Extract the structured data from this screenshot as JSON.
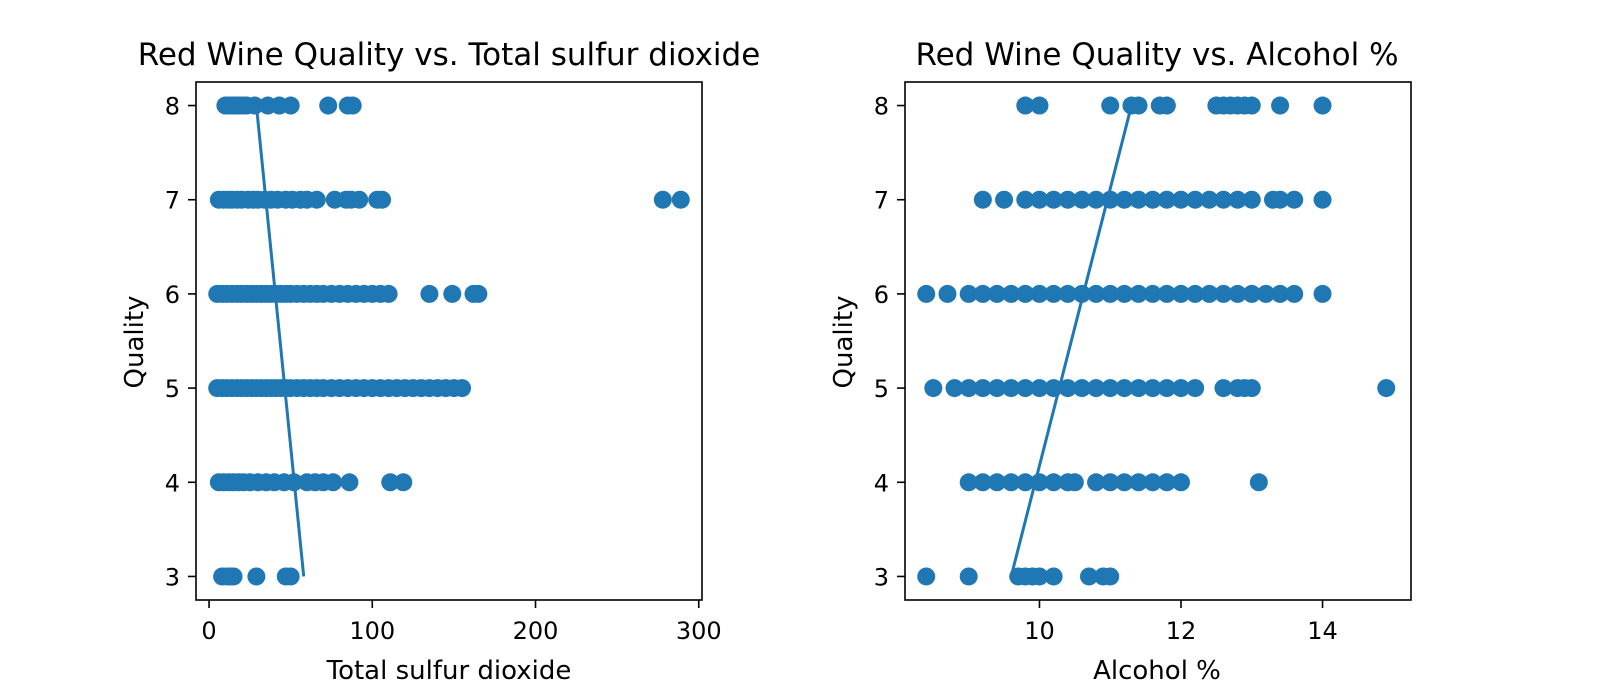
{
  "chart_data": [
    {
      "type": "scatter",
      "title": "Red Wine Quality vs. Total sulfur dioxide",
      "xlabel": "Total sulfur dioxide",
      "ylabel": "Quality",
      "xlim": [
        -8,
        302
      ],
      "ylim": [
        2.75,
        8.25
      ],
      "xticks": [
        0,
        100,
        200,
        300
      ],
      "xtick_labels": [
        "0",
        "100",
        "200",
        "300"
      ],
      "yticks": [
        3,
        4,
        5,
        6,
        7,
        8
      ],
      "ytick_labels": [
        "3",
        "4",
        "5",
        "6",
        "7",
        "8"
      ],
      "grid": false,
      "color": "#1f77b4",
      "fit_line": {
        "x": [
          58,
          29
        ],
        "y": [
          3,
          8
        ]
      },
      "points": {
        "x": [
          10,
          12,
          14,
          15,
          17,
          19,
          21,
          23,
          28,
          36,
          43,
          50,
          73,
          85,
          88,
          6,
          9,
          12,
          14,
          17,
          20,
          24,
          27,
          30,
          34,
          38,
          42,
          47,
          51,
          56,
          60,
          66,
          77,
          84,
          87,
          92,
          103,
          106,
          278,
          289,
          5,
          8,
          11,
          14,
          17,
          20,
          23,
          26,
          29,
          32,
          35,
          38,
          41,
          44,
          47,
          50,
          54,
          58,
          62,
          66,
          70,
          75,
          80,
          85,
          90,
          95,
          100,
          105,
          110,
          135,
          149,
          162,
          165,
          5,
          8,
          11,
          14,
          17,
          20,
          23,
          26,
          29,
          32,
          35,
          38,
          41,
          44,
          47,
          50,
          54,
          58,
          62,
          66,
          70,
          75,
          80,
          85,
          90,
          95,
          100,
          105,
          110,
          115,
          120,
          125,
          130,
          135,
          140,
          145,
          150,
          155,
          6,
          9,
          12,
          15,
          18,
          21,
          25,
          30,
          35,
          40,
          46,
          52,
          60,
          65,
          70,
          76,
          86,
          111,
          119,
          8,
          11,
          13,
          15,
          29,
          47,
          50
        ],
        "y": [
          8,
          8,
          8,
          8,
          8,
          8,
          8,
          8,
          8,
          8,
          8,
          8,
          8,
          8,
          8,
          7,
          7,
          7,
          7,
          7,
          7,
          7,
          7,
          7,
          7,
          7,
          7,
          7,
          7,
          7,
          7,
          7,
          7,
          7,
          7,
          7,
          7,
          7,
          7,
          7,
          6,
          6,
          6,
          6,
          6,
          6,
          6,
          6,
          6,
          6,
          6,
          6,
          6,
          6,
          6,
          6,
          6,
          6,
          6,
          6,
          6,
          6,
          6,
          6,
          6,
          6,
          6,
          6,
          6,
          6,
          6,
          6,
          6,
          5,
          5,
          5,
          5,
          5,
          5,
          5,
          5,
          5,
          5,
          5,
          5,
          5,
          5,
          5,
          5,
          5,
          5,
          5,
          5,
          5,
          5,
          5,
          5,
          5,
          5,
          5,
          5,
          5,
          5,
          5,
          5,
          5,
          5,
          5,
          5,
          5,
          5,
          4,
          4,
          4,
          4,
          4,
          4,
          4,
          4,
          4,
          4,
          4,
          4,
          4,
          4,
          4,
          4,
          4,
          4,
          4,
          3,
          3,
          3,
          3,
          3,
          3,
          3
        ]
      }
    },
    {
      "type": "scatter",
      "title": "Red Wine Quality vs. Alcohol %",
      "xlabel": "Alcohol %",
      "ylabel": "Quality",
      "xlim": [
        8.1,
        15.25
      ],
      "ylim": [
        2.75,
        8.25
      ],
      "xticks": [
        10,
        12,
        14
      ],
      "xtick_labels": [
        "10",
        "12",
        "14"
      ],
      "yticks": [
        3,
        4,
        5,
        6,
        7,
        8
      ],
      "ytick_labels": [
        "3",
        "4",
        "5",
        "6",
        "7",
        "8"
      ],
      "grid": false,
      "color": "#1f77b4",
      "fit_line": {
        "x": [
          9.6,
          11.3
        ],
        "y": [
          3,
          8
        ]
      },
      "points": {
        "x": [
          9.8,
          10.0,
          11.0,
          11.3,
          11.4,
          11.7,
          11.8,
          12.5,
          12.6,
          12.7,
          12.8,
          12.9,
          13.0,
          13.4,
          14.0,
          9.2,
          9.5,
          9.8,
          10.0,
          10.2,
          10.4,
          10.6,
          10.8,
          11.0,
          11.2,
          11.4,
          11.6,
          11.8,
          12.0,
          12.2,
          12.4,
          12.6,
          12.8,
          13.0,
          13.3,
          13.4,
          13.6,
          14.0,
          8.4,
          8.7,
          9.0,
          9.2,
          9.4,
          9.6,
          9.8,
          10.0,
          10.2,
          10.4,
          10.6,
          10.8,
          11.0,
          11.2,
          11.4,
          11.6,
          11.8,
          12.0,
          12.2,
          12.4,
          12.6,
          12.8,
          13.0,
          13.2,
          13.4,
          13.6,
          14.0,
          8.5,
          8.8,
          9.0,
          9.2,
          9.4,
          9.6,
          9.8,
          10.0,
          10.2,
          10.4,
          10.6,
          10.8,
          11.0,
          11.2,
          11.4,
          11.6,
          11.8,
          12.0,
          12.2,
          12.6,
          12.8,
          12.9,
          13.0,
          14.9,
          9.0,
          9.2,
          9.4,
          9.6,
          9.8,
          10.0,
          10.2,
          10.4,
          10.5,
          10.8,
          11.0,
          11.2,
          11.4,
          11.6,
          11.8,
          12.0,
          13.1,
          8.4,
          9.0,
          9.7,
          9.8,
          9.9,
          10.0,
          10.2,
          10.7,
          10.9,
          11.0
        ],
        "y": [
          8,
          8,
          8,
          8,
          8,
          8,
          8,
          8,
          8,
          8,
          8,
          8,
          8,
          8,
          8,
          7,
          7,
          7,
          7,
          7,
          7,
          7,
          7,
          7,
          7,
          7,
          7,
          7,
          7,
          7,
          7,
          7,
          7,
          7,
          7,
          7,
          7,
          7,
          6,
          6,
          6,
          6,
          6,
          6,
          6,
          6,
          6,
          6,
          6,
          6,
          6,
          6,
          6,
          6,
          6,
          6,
          6,
          6,
          6,
          6,
          6,
          6,
          6,
          6,
          6,
          5,
          5,
          5,
          5,
          5,
          5,
          5,
          5,
          5,
          5,
          5,
          5,
          5,
          5,
          5,
          5,
          5,
          5,
          5,
          5,
          5,
          5,
          5,
          5,
          4,
          4,
          4,
          4,
          4,
          4,
          4,
          4,
          4,
          4,
          4,
          4,
          4,
          4,
          4,
          4,
          4,
          3,
          3,
          3,
          3,
          3,
          3,
          3,
          3,
          3,
          3
        ]
      }
    }
  ]
}
